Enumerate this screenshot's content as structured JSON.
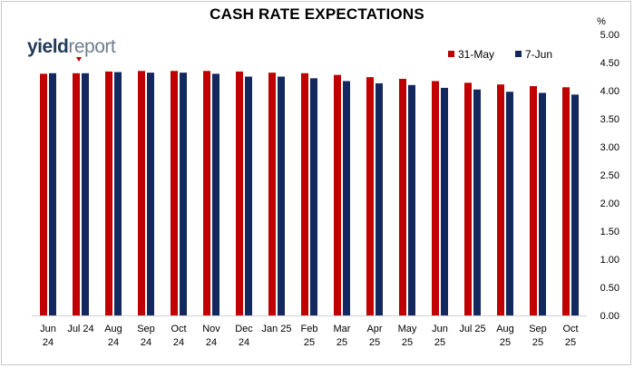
{
  "logo": {
    "bold": "yield",
    "light": "report"
  },
  "chart_data": {
    "type": "bar",
    "title": "CASH RATE EXPECTATIONS",
    "ylabel": "%",
    "ylim": [
      0,
      5
    ],
    "yticks": [
      "0.00",
      "0.50",
      "1.00",
      "1.50",
      "2.00",
      "2.50",
      "3.00",
      "3.50",
      "4.00",
      "4.50",
      "5.00"
    ],
    "grid": false,
    "legend_position": "top-right",
    "categories": [
      [
        "Jun",
        "24"
      ],
      [
        "Jul 24",
        ""
      ],
      [
        "Aug",
        "24"
      ],
      [
        "Sep",
        "24"
      ],
      [
        "Oct",
        "24"
      ],
      [
        "Nov",
        "24"
      ],
      [
        "Dec",
        "24"
      ],
      [
        "Jan 25",
        ""
      ],
      [
        "Feb",
        "25"
      ],
      [
        "Mar",
        "25"
      ],
      [
        "Apr",
        "25"
      ],
      [
        "May",
        "25"
      ],
      [
        "Jun",
        "25"
      ],
      [
        "Jul 25",
        ""
      ],
      [
        "Aug",
        "25"
      ],
      [
        "Sep",
        "25"
      ],
      [
        "Oct",
        "25"
      ]
    ],
    "series": [
      {
        "name": "31-May",
        "color": "#c00000",
        "values": [
          4.3,
          4.31,
          4.34,
          4.35,
          4.35,
          4.35,
          4.34,
          4.32,
          4.31,
          4.28,
          4.24,
          4.21,
          4.17,
          4.14,
          4.11,
          4.08,
          4.06
        ]
      },
      {
        "name": "7-Jun",
        "color": "#12285e",
        "values": [
          4.31,
          4.31,
          4.33,
          4.32,
          4.32,
          4.3,
          4.25,
          4.25,
          4.22,
          4.17,
          4.13,
          4.1,
          4.05,
          4.02,
          3.98,
          3.96,
          3.93
        ]
      }
    ]
  }
}
